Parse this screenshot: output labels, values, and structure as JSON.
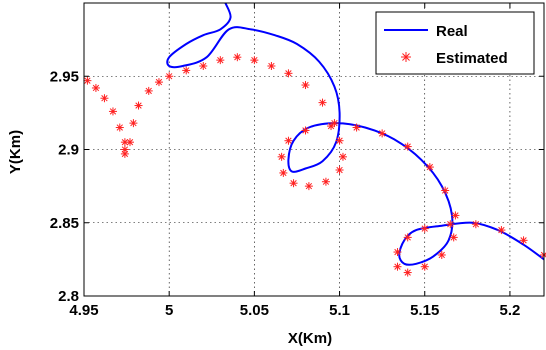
{
  "chart_data": {
    "type": "line",
    "title": "",
    "xlabel": "X(Km)",
    "ylabel": "Y(Km)",
    "xlim": [
      4.95,
      5.22
    ],
    "ylim": [
      2.8,
      3.0
    ],
    "xticks": [
      4.95,
      5.0,
      5.05,
      5.1,
      5.15,
      5.2
    ],
    "xtick_labels": [
      "4.95",
      "5",
      "5.05",
      "5.1",
      "5.15",
      "5.2"
    ],
    "yticks": [
      2.8,
      2.85,
      2.9,
      2.95
    ],
    "ytick_labels": [
      "2.8",
      "2.85",
      "2.9",
      "2.95"
    ],
    "grid": true,
    "legend_position": "top-right",
    "series": [
      {
        "name": "Real",
        "style": "line",
        "color": "#0000ff",
        "points": [
          [
            5.033,
            3.0
          ],
          [
            5.036,
            2.99
          ],
          [
            5.03,
            2.982
          ],
          [
            5.02,
            2.978
          ],
          [
            5.01,
            2.972
          ],
          [
            5.0,
            2.963
          ],
          [
            5.0,
            2.957
          ],
          [
            5.008,
            2.957
          ],
          [
            5.022,
            2.963
          ],
          [
            5.035,
            2.982
          ],
          [
            5.048,
            2.982
          ],
          [
            5.062,
            2.978
          ],
          [
            5.075,
            2.972
          ],
          [
            5.088,
            2.96
          ],
          [
            5.097,
            2.943
          ],
          [
            5.1,
            2.925
          ],
          [
            5.098,
            2.905
          ],
          [
            5.09,
            2.892
          ],
          [
            5.08,
            2.887
          ],
          [
            5.072,
            2.885
          ],
          [
            5.07,
            2.893
          ],
          [
            5.073,
            2.906
          ],
          [
            5.082,
            2.915
          ],
          [
            5.098,
            2.918
          ],
          [
            5.115,
            2.915
          ],
          [
            5.132,
            2.907
          ],
          [
            5.148,
            2.893
          ],
          [
            5.16,
            2.875
          ],
          [
            5.166,
            2.855
          ],
          [
            5.164,
            2.838
          ],
          [
            5.155,
            2.827
          ],
          [
            5.145,
            2.822
          ],
          [
            5.138,
            2.822
          ],
          [
            5.135,
            2.828
          ],
          [
            5.138,
            2.838
          ],
          [
            5.145,
            2.845
          ],
          [
            5.16,
            2.848
          ],
          [
            5.178,
            2.85
          ],
          [
            5.193,
            2.845
          ],
          [
            5.208,
            2.835
          ],
          [
            5.22,
            2.825
          ]
        ]
      },
      {
        "name": "Estimated",
        "style": "markers",
        "marker": "asterisk",
        "color": "#ff2020",
        "points": [
          [
            4.952,
            2.947
          ],
          [
            4.957,
            2.942
          ],
          [
            4.962,
            2.935
          ],
          [
            4.967,
            2.926
          ],
          [
            4.971,
            2.915
          ],
          [
            4.974,
            2.905
          ],
          [
            4.974,
            2.9
          ],
          [
            4.974,
            2.897
          ],
          [
            4.977,
            2.905
          ],
          [
            4.979,
            2.918
          ],
          [
            4.982,
            2.93
          ],
          [
            4.988,
            2.94
          ],
          [
            4.994,
            2.946
          ],
          [
            5.0,
            2.95
          ],
          [
            5.01,
            2.954
          ],
          [
            5.02,
            2.957
          ],
          [
            5.03,
            2.961
          ],
          [
            5.04,
            2.963
          ],
          [
            5.05,
            2.961
          ],
          [
            5.06,
            2.957
          ],
          [
            5.07,
            2.952
          ],
          [
            5.08,
            2.944
          ],
          [
            5.09,
            2.932
          ],
          [
            5.097,
            2.918
          ],
          [
            5.1,
            2.906
          ],
          [
            5.102,
            2.895
          ],
          [
            5.1,
            2.886
          ],
          [
            5.092,
            2.878
          ],
          [
            5.082,
            2.875
          ],
          [
            5.073,
            2.877
          ],
          [
            5.067,
            2.884
          ],
          [
            5.066,
            2.895
          ],
          [
            5.07,
            2.906
          ],
          [
            5.08,
            2.913
          ],
          [
            5.095,
            2.916
          ],
          [
            5.11,
            2.915
          ],
          [
            5.125,
            2.911
          ],
          [
            5.14,
            2.902
          ],
          [
            5.153,
            2.888
          ],
          [
            5.162,
            2.872
          ],
          [
            5.168,
            2.855
          ],
          [
            5.167,
            2.84
          ],
          [
            5.16,
            2.828
          ],
          [
            5.15,
            2.82
          ],
          [
            5.14,
            2.816
          ],
          [
            5.134,
            2.82
          ],
          [
            5.134,
            2.83
          ],
          [
            5.14,
            2.84
          ],
          [
            5.15,
            2.846
          ],
          [
            5.165,
            2.849
          ],
          [
            5.18,
            2.849
          ],
          [
            5.195,
            2.845
          ],
          [
            5.208,
            2.838
          ],
          [
            5.22,
            2.828
          ]
        ]
      }
    ]
  }
}
